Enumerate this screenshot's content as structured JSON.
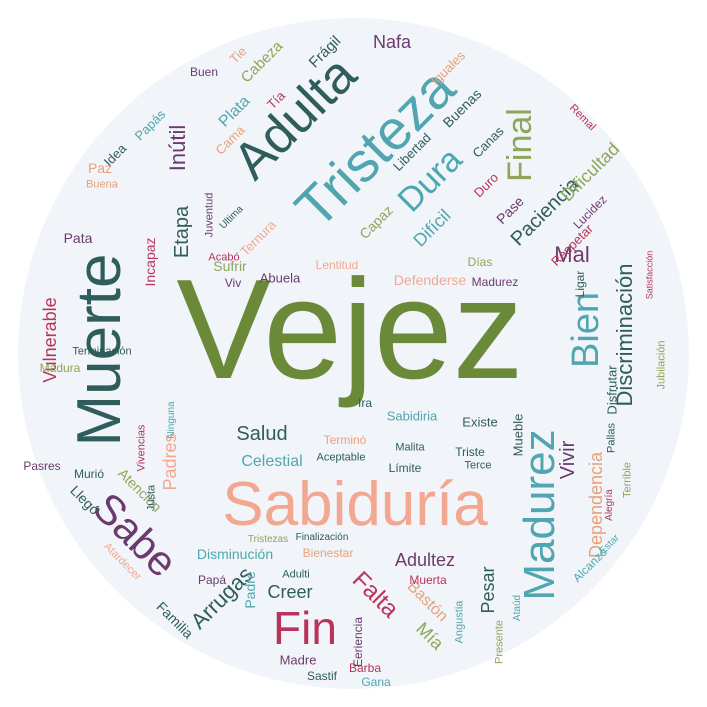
{
  "palette": {
    "green": "#6a8a3a",
    "teal": "#4fa6b0",
    "salmon": "#f2a890",
    "plum": "#6b3a6e",
    "slate": "#2f5d5c",
    "crimson": "#b8345a",
    "olive": "#8fa55a",
    "rose": "#d1607e",
    "peach": "#e9a07a",
    "background": "#f1f5f9"
  },
  "words": [
    "Vejez",
    "Sabiduría",
    "Muerte",
    "Tristeza",
    "Adulta",
    "Madurez",
    "Fin",
    "Sabe",
    "Bien",
    "Dura",
    "Final",
    "Discriminación",
    "Paciencia",
    "Arrugas",
    "Falta",
    "Vulnerable",
    "Vivir",
    "Dependencia",
    "Dificultad",
    "Adultez",
    "Inútil",
    "Etapa",
    "Mal",
    "Celestial",
    "Salud",
    "Padres",
    "Bastón",
    "Mía",
    "Difícil",
    "Pesar",
    "Nafa",
    "Plata",
    "Cabeza",
    "Frágil",
    "Incapaz",
    "Creer",
    "Disminución",
    "Atención",
    "Llegó",
    "Papás",
    "Idea",
    "Cama",
    "Ternura",
    "Sufrir",
    "Defenderse",
    "Pata",
    "Mueble",
    "Existe",
    "Terminación",
    "Madura",
    "Capaz",
    "Respetar",
    "Pase",
    "Tie",
    "Padre",
    "Familia",
    "Madre",
    "Buenas",
    "Canas",
    "Libertad",
    "Lucidez",
    "Abuela",
    "Vivencias",
    "Jubilación",
    "Sabidiria",
    "Madurez",
    "Lentitud",
    "Murió",
    "Terminó",
    "Aceptable",
    "Límite",
    "Triste",
    "Terce",
    "Bienestar",
    "Finalización",
    "Tristezas",
    "Muerta",
    "Eeriencia",
    "Presente",
    "Angustia",
    "Ataúd",
    "Alcanzó",
    "Alegría",
    "Terrible",
    "Disfrutar",
    "Pasres",
    "Atardecer",
    "Juventud",
    "Viv",
    "Ira",
    "Justa",
    "Ninguna",
    "Adulti",
    "Papá",
    "Paz",
    "Buena",
    "Duro",
    "Días",
    "Satisfacción",
    "Barba",
    "Ligar",
    "Sastif",
    "Gana",
    "Remal",
    "Iguales",
    "Tía",
    "Buen",
    "Ultima",
    "Malita",
    "Pallas",
    "Acabó",
    "Estar"
  ]
}
